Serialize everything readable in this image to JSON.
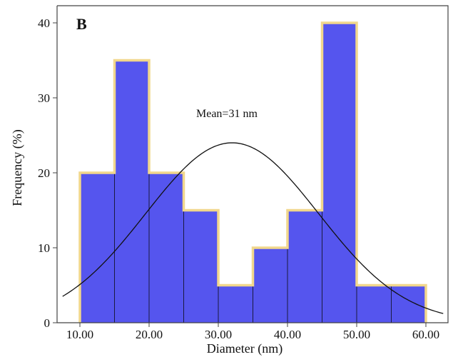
{
  "chart_data": {
    "type": "bar",
    "title": "",
    "panel_label": "B",
    "annotation": "Mean=31 nm",
    "xlabel": "Diameter (nm)",
    "ylabel": "Frequency (%)",
    "bins": [
      {
        "start": 10,
        "end": 15,
        "value": 20
      },
      {
        "start": 15,
        "end": 20,
        "value": 35
      },
      {
        "start": 20,
        "end": 25,
        "value": 20
      },
      {
        "start": 25,
        "end": 30,
        "value": 15
      },
      {
        "start": 30,
        "end": 35,
        "value": 5
      },
      {
        "start": 35,
        "end": 40,
        "value": 10
      },
      {
        "start": 40,
        "end": 45,
        "value": 15
      },
      {
        "start": 45,
        "end": 50,
        "value": 40
      },
      {
        "start": 50,
        "end": 55,
        "value": 5
      },
      {
        "start": 55,
        "end": 60,
        "value": 5
      }
    ],
    "x_ticks": [
      "10.00",
      "20.00",
      "30.00",
      "40.00",
      "50.00",
      "60.00"
    ],
    "y_ticks": [
      "0",
      "10",
      "20",
      "30",
      "40"
    ],
    "xlim": [
      7.5,
      62.5
    ],
    "ylim": [
      0,
      42
    ],
    "normal_curve": {
      "mean": 32,
      "peak": 24,
      "sd": 12.5
    },
    "grid": false,
    "legend": "none",
    "colors": {
      "bar_fill": "#5555ee",
      "bar_edge": "#1a1a40",
      "outline": "#f1d78c",
      "curve": "#111111"
    }
  }
}
